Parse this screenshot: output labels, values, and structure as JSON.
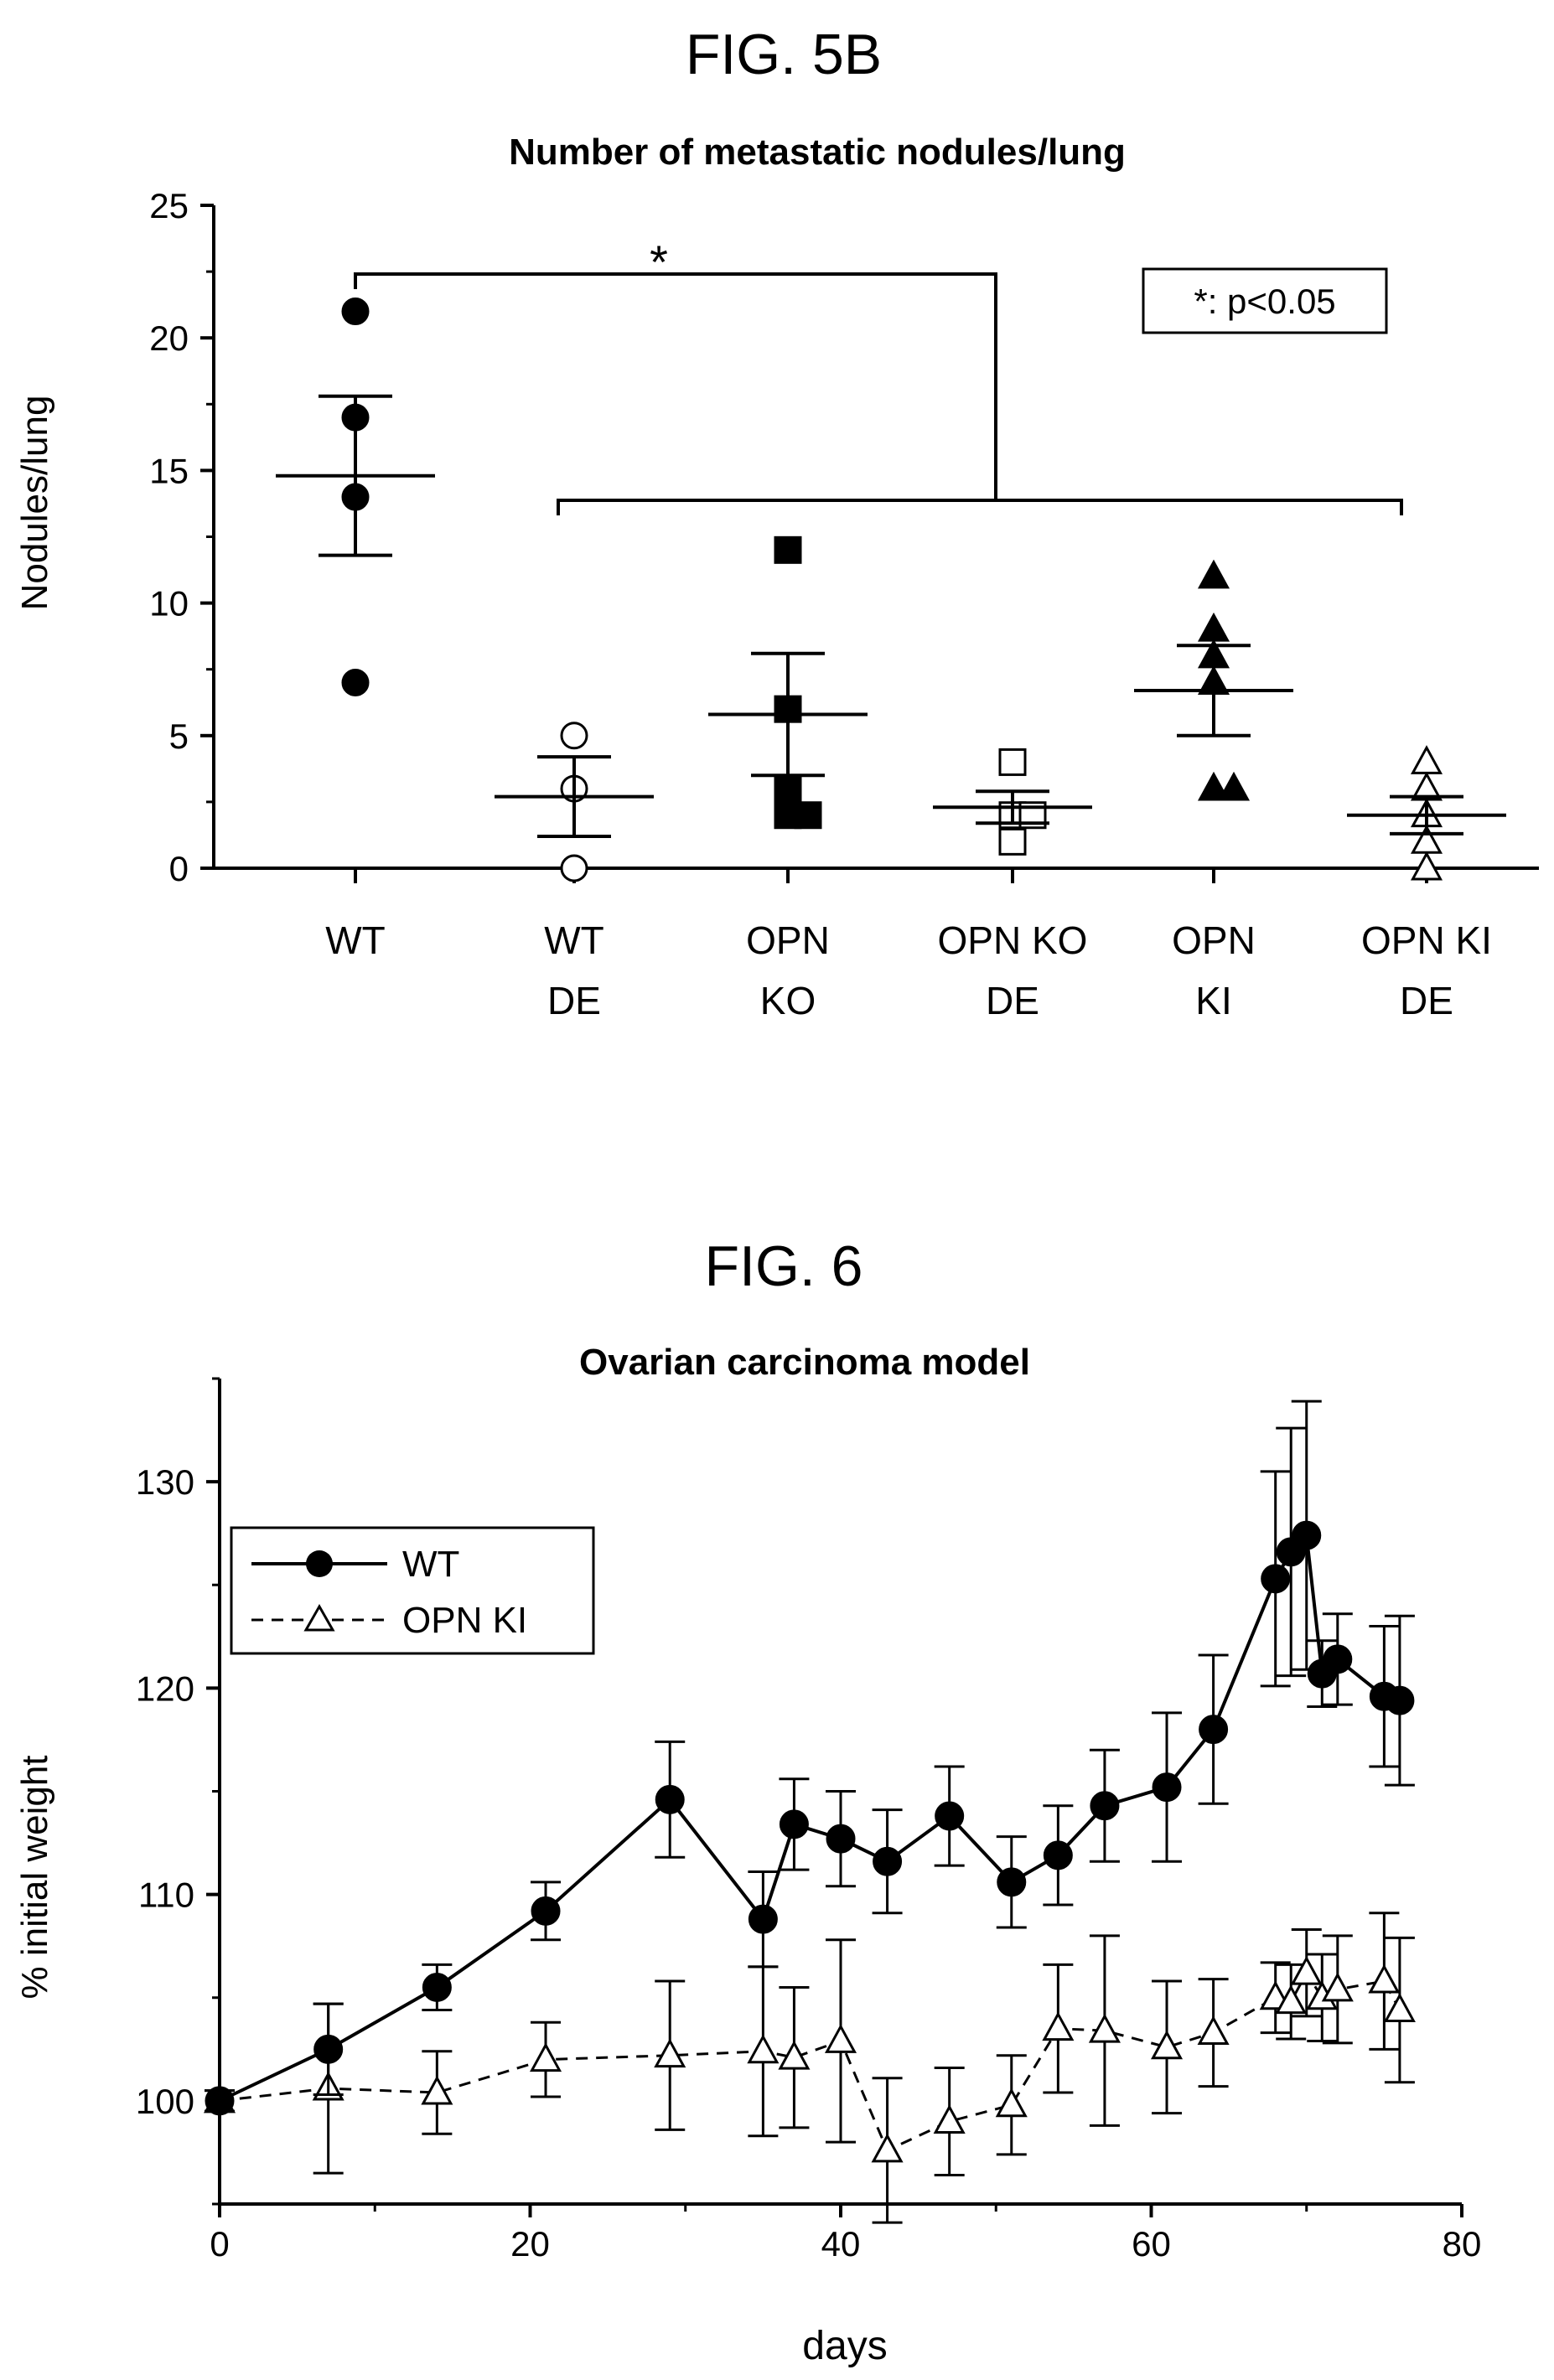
{
  "figures": [
    {
      "figure_label": "FIG. 5B",
      "chart_data": {
        "type": "scatter",
        "title": "Number of metastatic nodules/lung",
        "xlabel": "",
        "ylabel": "Nodules/lung",
        "ylim": [
          0,
          25
        ],
        "yticks": [
          0,
          5,
          10,
          15,
          20,
          25
        ],
        "grid": false,
        "categories": [
          {
            "line1": "WT",
            "line2": ""
          },
          {
            "line1": "WT",
            "line2": "DE"
          },
          {
            "line1": "OPN",
            "line2": "KO"
          },
          {
            "line1": "OPN KO",
            "line2": "DE"
          },
          {
            "line1": "OPN",
            "line2": "KI"
          },
          {
            "line1": "OPN KI",
            "line2": "DE"
          }
        ],
        "groups": [
          {
            "marker": "circle",
            "filled": true,
            "points": [
              21,
              17,
              14,
              7
            ],
            "mean": 14.8,
            "sem": 3.0
          },
          {
            "marker": "circle",
            "filled": false,
            "points": [
              5,
              3,
              0
            ],
            "mean": 2.7,
            "sem": 1.5
          },
          {
            "marker": "square",
            "filled": true,
            "points": [
              12,
              6,
              3,
              2,
              2
            ],
            "mean": 5.8,
            "sem": 2.3
          },
          {
            "marker": "square",
            "filled": false,
            "points": [
              4,
              2,
              2,
              1
            ],
            "mean": 2.3,
            "sem": 0.6
          },
          {
            "marker": "triangle",
            "filled": true,
            "points": [
              11,
              9,
              8,
              7,
              3,
              3
            ],
            "mean": 6.7,
            "sem": 1.7
          },
          {
            "marker": "triangle",
            "filled": false,
            "points": [
              4,
              3,
              2,
              1,
              0
            ],
            "mean": 2.0,
            "sem": 0.7
          }
        ],
        "annotations": [
          {
            "text": "*",
            "kind": "significance"
          },
          {
            "text": "*: p<0.05",
            "kind": "legend-box",
            "placement": "top-right"
          }
        ]
      }
    },
    {
      "figure_label": "FIG. 6",
      "chart_data": {
        "type": "line",
        "title": "Ovarian carcinoma model",
        "xlabel": "days",
        "ylabel": "% initial weight",
        "xlim": [
          0,
          80
        ],
        "ylim": [
          95,
          135
        ],
        "xticks": [
          0,
          20,
          40,
          60,
          80
        ],
        "yticks": [
          100,
          110,
          120,
          130
        ],
        "grid": false,
        "legend_placement": "top-left",
        "series": [
          {
            "name": "WT",
            "marker": "circle",
            "filled": true,
            "dash": false,
            "x": [
              0,
              7,
              14,
              21,
              29,
              35,
              37,
              40,
              43,
              47,
              51,
              54,
              57,
              61,
              64,
              68,
              69,
              70,
              71,
              72,
              75,
              76
            ],
            "y": [
              100,
              102.5,
              105.5,
              109.2,
              114.6,
              108.8,
              113.4,
              112.7,
              111.6,
              113.8,
              110.6,
              111.9,
              114.3,
              115.2,
              118.0,
              125.3,
              126.6,
              127.4,
              120.7,
              121.4,
              119.6,
              119.4
            ],
            "err": [
              0.5,
              2.2,
              1.1,
              1.4,
              2.8,
              2.3,
              2.2,
              2.3,
              2.5,
              2.4,
              2.2,
              2.4,
              2.7,
              3.6,
              3.6,
              5.2,
              6.0,
              6.5,
              1.6,
              2.2,
              3.4,
              4.1
            ]
          },
          {
            "name": "OPN KI",
            "marker": "triangle",
            "filled": false,
            "dash": true,
            "x": [
              0,
              7,
              14,
              21,
              29,
              35,
              37,
              40,
              43,
              47,
              51,
              54,
              57,
              61,
              64,
              68,
              69,
              70,
              71,
              72,
              75,
              76
            ],
            "y": [
              100,
              100.6,
              100.4,
              102.0,
              102.2,
              102.4,
              102.1,
              102.9,
              97.6,
              99.0,
              99.8,
              103.5,
              103.4,
              102.6,
              103.3,
              105.0,
              104.8,
              106.2,
              105.0,
              105.4,
              105.8,
              104.4
            ],
            "err": [
              0.5,
              4.1,
              2.0,
              1.8,
              3.6,
              4.1,
              3.4,
              4.9,
              3.5,
              2.6,
              2.4,
              3.1,
              4.6,
              3.2,
              2.6,
              1.7,
              1.8,
              2.1,
              2.1,
              2.6,
              3.3,
              3.5
            ]
          }
        ]
      }
    }
  ]
}
